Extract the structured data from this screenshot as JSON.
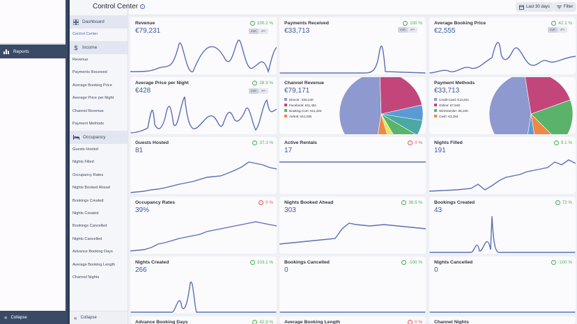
{
  "app_sidebar": {
    "reports_label": "Reports",
    "collapse_label": "Collapse"
  },
  "header": {
    "title": "Control Center",
    "date_range": "Last 30 days",
    "filter": "Filter"
  },
  "nav": {
    "dashboard": "Dashboard",
    "control_center": "Control Center",
    "income_section": "Income",
    "income_items": [
      "Revenue",
      "Payments Received",
      "Average Booking Price",
      "Average Price per Night",
      "Channel Revenue",
      "Payment Methods"
    ],
    "occupancy_section": "Occupancy",
    "occupancy_items": [
      "Guests Hosted",
      "Nights Filled",
      "Occupancy Rates",
      "Nights Booked Ahead",
      "Bookings Created",
      "Nights Created",
      "Bookings Cancelled",
      "Nights Cancelled",
      "Advance Booking Days",
      "Average Booking Length",
      "Channel Nights"
    ],
    "collapse_label": "Collapse"
  },
  "currency_toggle": [
    "EUR",
    "JPY"
  ],
  "cards": [
    {
      "title": "Revenue",
      "value": "€79,231",
      "delta": "100.2 %",
      "trend": "up"
    },
    {
      "title": "Payments Received",
      "value": "€33,713",
      "delta": "100 %",
      "trend": "up"
    },
    {
      "title": "Average Booking Price",
      "value": "€2,555",
      "delta": "42.1 %",
      "trend": "up"
    },
    {
      "title": "Average Price per Night",
      "value": "€428",
      "delta": "28.9 %",
      "trend": "up"
    },
    {
      "title": "Channel Revenue",
      "value": "€79,171",
      "legend": [
        "Directs : €20,240",
        "Facebook: €11,451",
        "Booking.Com: €11,284",
        "Airbnb: €11,036"
      ]
    },
    {
      "title": "Payment Methods",
      "value": "€33,713",
      "legend": [
        "Credit-Card: €13,621",
        "Online: €7,548",
        "Wiretransfer: €6,220",
        "Cash: €3,253"
      ]
    },
    {
      "title": "Guests Hosted",
      "value": "81",
      "delta": "37.3 %",
      "trend": "up"
    },
    {
      "title": "Active Rentals",
      "value": "17",
      "delta": "0 %",
      "trend": "down"
    },
    {
      "title": "Nights Filled",
      "value": "191",
      "delta": "9.1 %",
      "trend": "up"
    },
    {
      "title": "Occupancy Rates",
      "value": "39%",
      "delta": "0 %",
      "trend": "down"
    },
    {
      "title": "Nights Booked Ahead",
      "value": "303",
      "delta": "36.5 %",
      "trend": "up"
    },
    {
      "title": "Bookings Created",
      "value": "43",
      "delta": "72 %",
      "trend": "up"
    },
    {
      "title": "Nights Created",
      "value": "266",
      "delta": "103.1 %",
      "trend": "up"
    },
    {
      "title": "Bookings Cancelled",
      "value": "0",
      "delta": "-100 %",
      "trend": "up"
    },
    {
      "title": "Nights Cancelled",
      "value": "0",
      "delta": "-100 %",
      "trend": "up"
    },
    {
      "title": "Advance Booking Days",
      "value": "",
      "delta": "42.9 %",
      "trend": "up"
    },
    {
      "title": "Average Booking Length",
      "value": "",
      "delta": "0 %",
      "trend": "down"
    },
    {
      "title": "Channel Nights",
      "value": "",
      "delta": "",
      "trend": ""
    }
  ],
  "colors": {
    "accent": "#4b6bb0",
    "sidebar_dark": "#3a4a66",
    "up": "#4caf50",
    "down": "#e25555",
    "chart_line": "#5a6fb5",
    "pie": [
      "#8e99cf",
      "#c2467a",
      "#e8e55a",
      "#5ab36a",
      "#5b9bd5",
      "#ee8844",
      "#4aa9a4"
    ]
  }
}
